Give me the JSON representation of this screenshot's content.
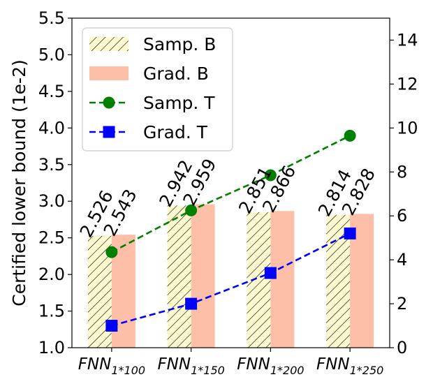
{
  "chart_data": {
    "type": "bar",
    "categories": [
      "FNN_{1*100}",
      "FNN_{1*150}",
      "FNN_{1*200}",
      "FNN_{1*250}"
    ],
    "category_labels": [
      {
        "base": "FNN",
        "sub": "1*100"
      },
      {
        "base": "FNN",
        "sub": "1*150"
      },
      {
        "base": "FNN",
        "sub": "1*200"
      },
      {
        "base": "FNN",
        "sub": "1*250"
      }
    ],
    "series": [
      {
        "name": "Samp. B",
        "kind": "bar",
        "axis": "left",
        "values": [
          2.526,
          2.942,
          2.851,
          2.814
        ],
        "value_labels": [
          "2.526",
          "2.942",
          "2.851",
          "2.814"
        ],
        "color": "#fdfad0",
        "pattern": "hatch"
      },
      {
        "name": "Grad. B",
        "kind": "bar",
        "axis": "left",
        "values": [
          2.543,
          2.959,
          2.866,
          2.828
        ],
        "value_labels": [
          "2.543",
          "2.959",
          "2.866",
          "2.828"
        ],
        "color": "#fdbfa8"
      },
      {
        "name": "Samp. T",
        "kind": "line",
        "axis": "right",
        "values": [
          4.35,
          6.25,
          7.85,
          9.65
        ],
        "color": "#008000",
        "marker": "circle",
        "linestyle": "dashed"
      },
      {
        "name": "Grad. T",
        "kind": "line",
        "axis": "right",
        "values": [
          1.0,
          2.0,
          3.4,
          5.2
        ],
        "color": "#0000ff",
        "marker": "square",
        "linestyle": "dashed"
      }
    ],
    "ylabel": "Certified lower bound (1e-2)",
    "xlabel": "",
    "ylim": [
      1.0,
      5.5
    ],
    "yticks": [
      "1.0",
      "1.5",
      "2.0",
      "2.5",
      "3.0",
      "3.5",
      "4.0",
      "4.5",
      "5.0",
      "5.5"
    ],
    "y2lim": [
      0,
      15
    ],
    "y2ticks": [
      "0",
      "2",
      "4",
      "6",
      "8",
      "10",
      "12",
      "14"
    ],
    "legend_position": "top-left",
    "grid": false
  }
}
